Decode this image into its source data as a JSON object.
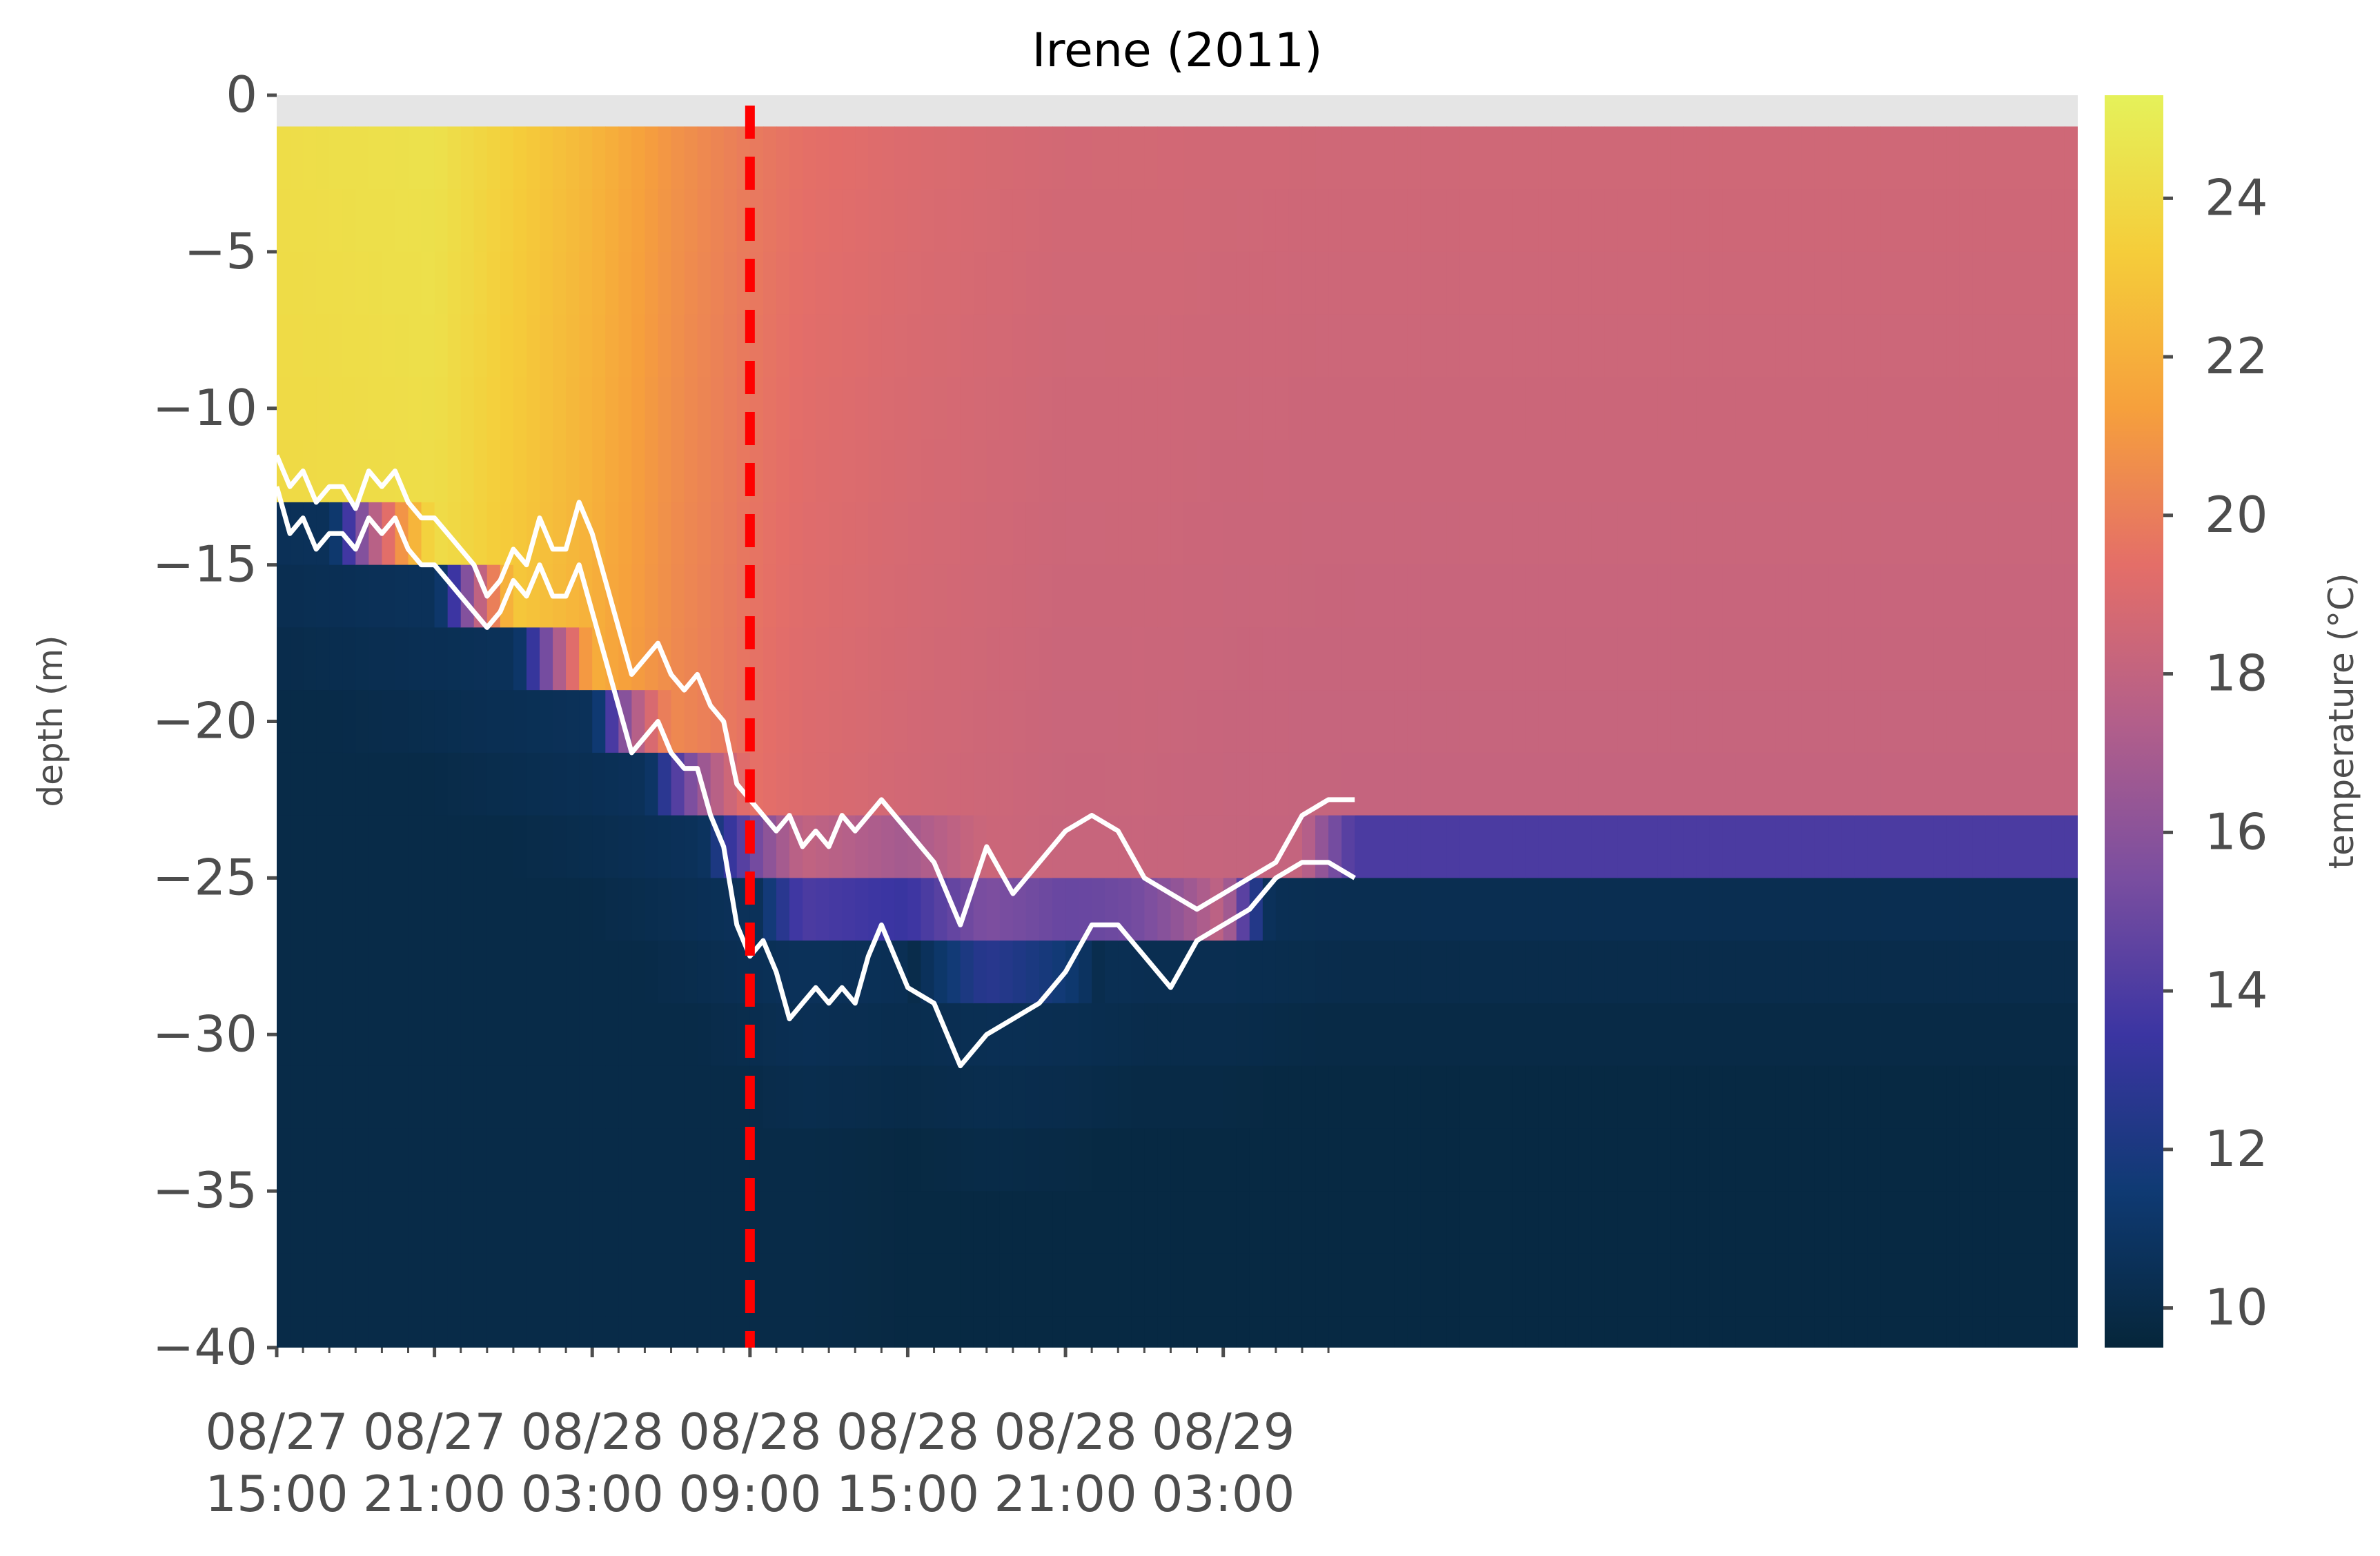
{
  "chart_data": {
    "type": "heatmap",
    "title": "Irene (2011)",
    "ylabel": "depth (m)",
    "colorbar_label": "temperature (°C)",
    "ylim": [
      -40,
      0
    ],
    "yticks": [
      0,
      -5,
      -10,
      -15,
      -20,
      -25,
      -30,
      -35,
      -40
    ],
    "ytick_labels": [
      "0",
      "−5",
      "−10",
      "−15",
      "−20",
      "−25",
      "−30",
      "−35",
      "−40"
    ],
    "xlim_hours": [
      0,
      68.5
    ],
    "xticks": [
      {
        "hours": 0,
        "date": "08/27",
        "time": "15:00"
      },
      {
        "hours": 6,
        "date": "08/27",
        "time": "21:00"
      },
      {
        "hours": 12,
        "date": "08/28",
        "time": "03:00"
      },
      {
        "hours": 18,
        "date": "08/28",
        "time": "09:00"
      },
      {
        "hours": 24,
        "date": "08/28",
        "time": "15:00"
      },
      {
        "hours": 30,
        "date": "08/28",
        "time": "21:00"
      },
      {
        "hours": 36,
        "date": "08/29",
        "time": "03:00"
      }
    ],
    "colorbar": {
      "vmin": 9.5,
      "vmax": 25.3,
      "ticks": [
        10,
        12,
        14,
        16,
        18,
        20,
        22,
        24
      ],
      "colormap": "thermal",
      "stops": [
        "#06263a",
        "#0f3a73",
        "#3b35a2",
        "#7a4ea0",
        "#b35f8a",
        "#e46e68",
        "#f6a03c",
        "#f5cd3a",
        "#e5f15a"
      ]
    },
    "storm_marker": {
      "hours": 18.0,
      "color": "#ff0000",
      "style": "dashed"
    },
    "profile_times_hours": [
      0,
      6,
      12,
      15,
      18,
      20,
      24,
      27,
      30,
      33,
      36,
      39,
      41
    ],
    "surface_temperature": [
      24.0,
      24.2,
      22.0,
      20.5,
      19.5,
      19.0,
      18.6,
      18.4,
      18.2,
      18.2,
      18.1,
      18.1,
      18.1
    ],
    "bottom_temperature": [
      10.0,
      10.0,
      10.0,
      10.0,
      10.0,
      10.0,
      9.8,
      9.8,
      9.8,
      9.8,
      9.8,
      9.8,
      9.8
    ],
    "thermocline_upper_depth": [
      -12,
      -14,
      -18,
      -20,
      -22,
      -23.5,
      -23,
      -24,
      -24,
      -25.5,
      -26,
      -24,
      -23
    ],
    "thermocline_lower_depth": [
      -13,
      -16,
      -20,
      -23,
      -26,
      -28,
      -28,
      -30,
      -29,
      -27,
      -27,
      -25.5,
      -25
    ],
    "contour_upper": {
      "hours": [
        0,
        0.5,
        1,
        1.5,
        2,
        2.5,
        3,
        3.5,
        4,
        4.5,
        5,
        5.5,
        6,
        6.5,
        7,
        7.5,
        8,
        8.5,
        9,
        9.5,
        10,
        10.5,
        11,
        11.5,
        12,
        12.5,
        13,
        13.5,
        14,
        14.5,
        15,
        15.5,
        16,
        16.5,
        17,
        17.5,
        18,
        18.5,
        19,
        19.5,
        20,
        20.5,
        21,
        21.5,
        22,
        22.5,
        23,
        23.5,
        24,
        25,
        26,
        27,
        28,
        29,
        30,
        31,
        32,
        33,
        34,
        35,
        36,
        37,
        38,
        39,
        40,
        41
      ],
      "depth": [
        -11.5,
        -12.5,
        -12.0,
        -13.0,
        -12.5,
        -12.5,
        -13.2,
        -12.0,
        -12.5,
        -12.0,
        -13.0,
        -13.5,
        -13.5,
        -14.0,
        -14.5,
        -15.0,
        -16.0,
        -15.5,
        -14.5,
        -15.0,
        -13.5,
        -14.5,
        -14.5,
        -13.0,
        -14.0,
        -15.5,
        -17.0,
        -18.5,
        -18.0,
        -17.5,
        -18.5,
        -19.0,
        -18.5,
        -19.5,
        -20.0,
        -22.0,
        -22.5,
        -23.0,
        -23.5,
        -23.0,
        -24.0,
        -23.5,
        -24.0,
        -23.0,
        -23.5,
        -23.0,
        -22.5,
        -23.0,
        -23.5,
        -24.5,
        -26.5,
        -24.0,
        -25.5,
        -24.5,
        -23.5,
        -23.0,
        -23.5,
        -25.0,
        -25.5,
        -26.0,
        -25.5,
        -25.0,
        -24.5,
        -23.0,
        -22.5,
        -22.5
      ]
    },
    "contour_lower": {
      "hours": [
        0,
        0.5,
        1,
        1.5,
        2,
        2.5,
        3,
        3.5,
        4,
        4.5,
        5,
        5.5,
        6,
        6.5,
        7,
        7.5,
        8,
        8.5,
        9,
        9.5,
        10,
        10.5,
        11,
        11.5,
        12,
        12.5,
        13,
        13.5,
        14,
        14.5,
        15,
        15.5,
        16,
        16.5,
        17,
        17.5,
        18,
        18.5,
        19,
        19.5,
        20,
        20.5,
        21,
        21.5,
        22,
        22.5,
        23,
        23.5,
        24,
        25,
        26,
        27,
        28,
        29,
        30,
        31,
        32,
        33,
        34,
        35,
        36,
        37,
        38,
        39,
        40,
        41
      ],
      "depth": [
        -12.5,
        -14.0,
        -13.5,
        -14.5,
        -14.0,
        -14.0,
        -14.5,
        -13.5,
        -14.0,
        -13.5,
        -14.5,
        -15.0,
        -15.0,
        -15.5,
        -16.0,
        -16.5,
        -17.0,
        -16.5,
        -15.5,
        -16.0,
        -15.0,
        -16.0,
        -16.0,
        -15.0,
        -16.5,
        -18.0,
        -19.5,
        -21.0,
        -20.5,
        -20.0,
        -21.0,
        -21.5,
        -21.5,
        -23.0,
        -24.0,
        -26.5,
        -27.5,
        -27.0,
        -28.0,
        -29.5,
        -29.0,
        -28.5,
        -29.0,
        -28.5,
        -29.0,
        -27.5,
        -26.5,
        -27.5,
        -28.5,
        -29.0,
        -31.0,
        -30.0,
        -29.5,
        -29.0,
        -28.0,
        -26.5,
        -26.5,
        -27.5,
        -28.5,
        -27.0,
        -26.5,
        -26.0,
        -25.0,
        -24.5,
        -24.5,
        -25.0
      ]
    },
    "contour_color": "#ffffff",
    "missing_color": "#e5e5e5",
    "grid": false
  }
}
